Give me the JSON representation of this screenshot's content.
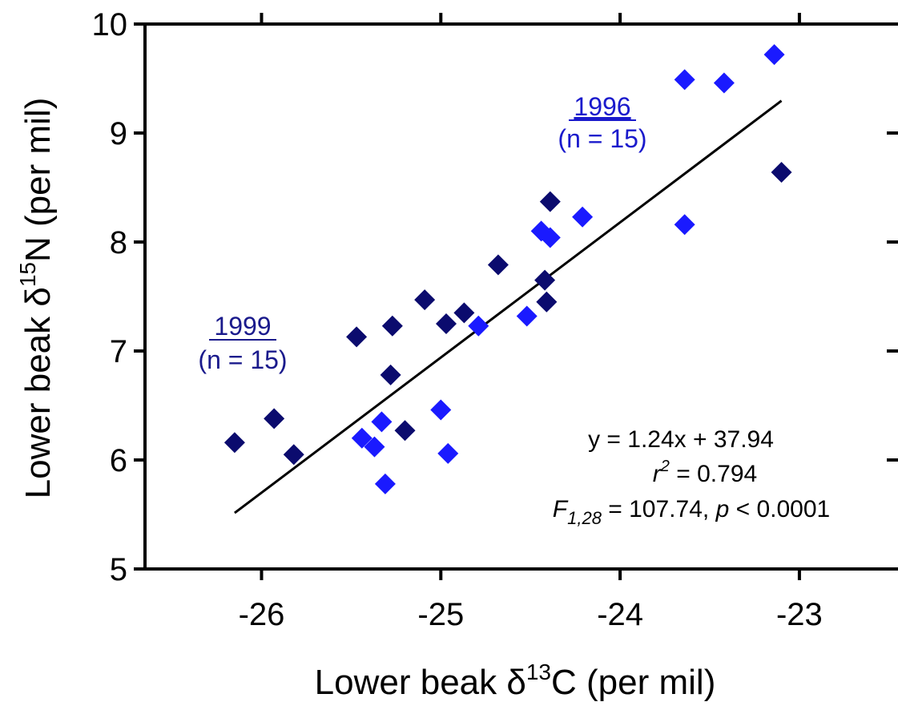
{
  "chart_data": {
    "type": "scatter",
    "xlabel": {
      "prefix": "Lower beak ",
      "symbol": "δ",
      "sup": "13",
      "suffix": "C (per mil)"
    },
    "ylabel": {
      "prefix": "Lower beak ",
      "symbol": "δ",
      "sup": "15",
      "suffix": "N (per mil)"
    },
    "xlim": [
      -26.65,
      -22.45
    ],
    "ylim": [
      5,
      10
    ],
    "xticks": [
      -26,
      -25,
      -24,
      -23
    ],
    "xtick_labels": [
      "-26",
      "-25",
      "-24",
      "-23"
    ],
    "yticks": [
      5,
      6,
      7,
      8,
      9,
      10
    ],
    "ytick_labels": [
      "5",
      "6",
      "7",
      "8",
      "9",
      "10"
    ],
    "grid": false,
    "marker": "diamond",
    "series": [
      {
        "name": "1999",
        "color": "#0b0b6e",
        "x": [
          -26.15,
          -25.93,
          -25.82,
          -25.47,
          -25.27,
          -25.28,
          -25.2,
          -25.09,
          -24.97,
          -24.87,
          -24.68,
          -24.41,
          -24.42,
          -24.39,
          -23.1
        ],
        "y": [
          6.16,
          6.38,
          6.05,
          7.13,
          7.23,
          6.78,
          6.27,
          7.47,
          7.25,
          7.35,
          7.79,
          7.45,
          7.65,
          8.37,
          8.64
        ]
      },
      {
        "name": "1996",
        "color": "#1a1aff",
        "x": [
          -25.44,
          -25.37,
          -25.33,
          -25.31,
          -25.0,
          -24.96,
          -24.79,
          -24.52,
          -24.44,
          -24.39,
          -24.21,
          -23.64,
          -23.42,
          -23.14,
          -23.64
        ],
        "y": [
          6.2,
          6.12,
          6.35,
          5.78,
          6.46,
          6.06,
          7.23,
          7.32,
          8.1,
          8.04,
          8.23,
          9.49,
          9.46,
          9.72,
          8.16
        ]
      }
    ],
    "regression": {
      "slope": 1.24,
      "intercept": 37.94,
      "x_range": [
        -26.15,
        -23.1
      ],
      "color": "#000000"
    },
    "annotations": {
      "equation": "y = 1.24x + 37.94",
      "r2_label": "r",
      "r2_sup": "2",
      "r2_value": " = 0.794",
      "f_label": "F",
      "f_sub": "1,28",
      "f_value": " = 107.74, ",
      "p_label": "p",
      "p_value": " < 0.0001"
    },
    "group_labels": [
      {
        "year": "1996",
        "n": "(n = 15)",
        "color": "#1a1acc"
      },
      {
        "year": "1999",
        "n": "(n = 15)",
        "color": "#1a1a8c"
      }
    ]
  }
}
